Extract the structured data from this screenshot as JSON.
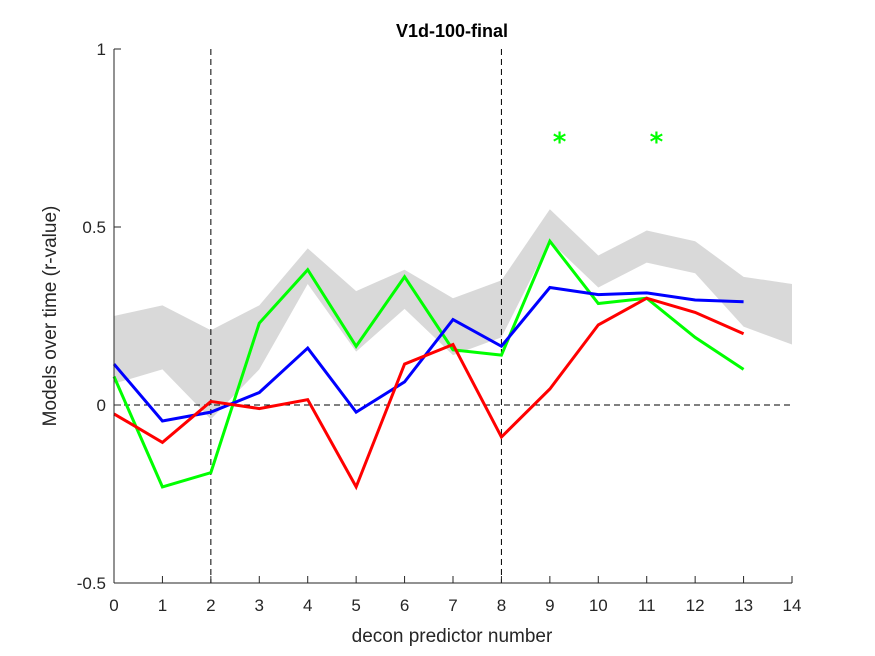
{
  "chart_data": {
    "type": "line",
    "title": "V1d-100-final",
    "xlabel": "decon predictor number",
    "ylabel": "Models over time (r-value)",
    "xlim": [
      0,
      14
    ],
    "ylim": [
      -0.5,
      1
    ],
    "xticks": [
      0,
      1,
      2,
      3,
      4,
      5,
      6,
      7,
      8,
      9,
      10,
      11,
      12,
      13,
      14
    ],
    "xtick_labels": [
      "0",
      "1",
      "2",
      "3",
      "4",
      "5",
      "6",
      "7",
      "8",
      "9",
      "10",
      "11",
      "12",
      "13",
      "14"
    ],
    "yticks": [
      -0.5,
      0,
      0.5,
      1
    ],
    "ytick_labels": [
      "-0.5",
      "0",
      "0.5",
      "1"
    ],
    "grid": false,
    "vertical_reference_lines": [
      2,
      8
    ],
    "horizontal_reference_line": 0,
    "band": {
      "color": "#d9d9d9",
      "x": [
        0,
        1,
        2,
        3,
        4,
        5,
        6,
        7,
        8,
        9,
        10,
        11,
        12,
        13,
        14
      ],
      "upper": [
        0.25,
        0.28,
        0.21,
        0.28,
        0.44,
        0.32,
        0.38,
        0.3,
        0.35,
        0.55,
        0.42,
        0.49,
        0.46,
        0.36,
        0.34
      ],
      "lower": [
        0.06,
        0.1,
        -0.04,
        0.1,
        0.34,
        0.15,
        0.27,
        0.14,
        0.19,
        0.46,
        0.33,
        0.4,
        0.37,
        0.22,
        0.17
      ]
    },
    "series": [
      {
        "color": "#00ff00",
        "x": [
          0,
          1,
          2,
          3,
          4,
          5,
          6,
          7,
          8,
          9,
          10,
          11,
          12,
          13
        ],
        "values": [
          0.08,
          -0.23,
          -0.19,
          0.23,
          0.38,
          0.165,
          0.36,
          0.155,
          0.14,
          0.46,
          0.285,
          0.3,
          0.19,
          0.1
        ]
      },
      {
        "color": "#0000ff",
        "x": [
          0,
          1,
          2,
          3,
          4,
          5,
          6,
          7,
          8,
          9,
          10,
          11,
          12,
          13
        ],
        "values": [
          0.115,
          -0.045,
          -0.02,
          0.035,
          0.16,
          -0.02,
          0.065,
          0.24,
          0.165,
          0.33,
          0.31,
          0.315,
          0.295,
          0.29
        ]
      },
      {
        "color": "#ff0000",
        "x": [
          0,
          1,
          2,
          3,
          4,
          5,
          6,
          7,
          8,
          9,
          10,
          11,
          12,
          13
        ],
        "values": [
          -0.025,
          -0.105,
          0.01,
          -0.01,
          0.015,
          -0.23,
          0.115,
          0.17,
          -0.09,
          0.045,
          0.225,
          0.3,
          0.26,
          0.2
        ]
      }
    ],
    "annotations": [
      {
        "text": "*",
        "x": 9.2,
        "y": 0.76,
        "color": "#00ff00"
      },
      {
        "text": "*",
        "x": 11.2,
        "y": 0.76,
        "color": "#00ff00"
      }
    ]
  }
}
